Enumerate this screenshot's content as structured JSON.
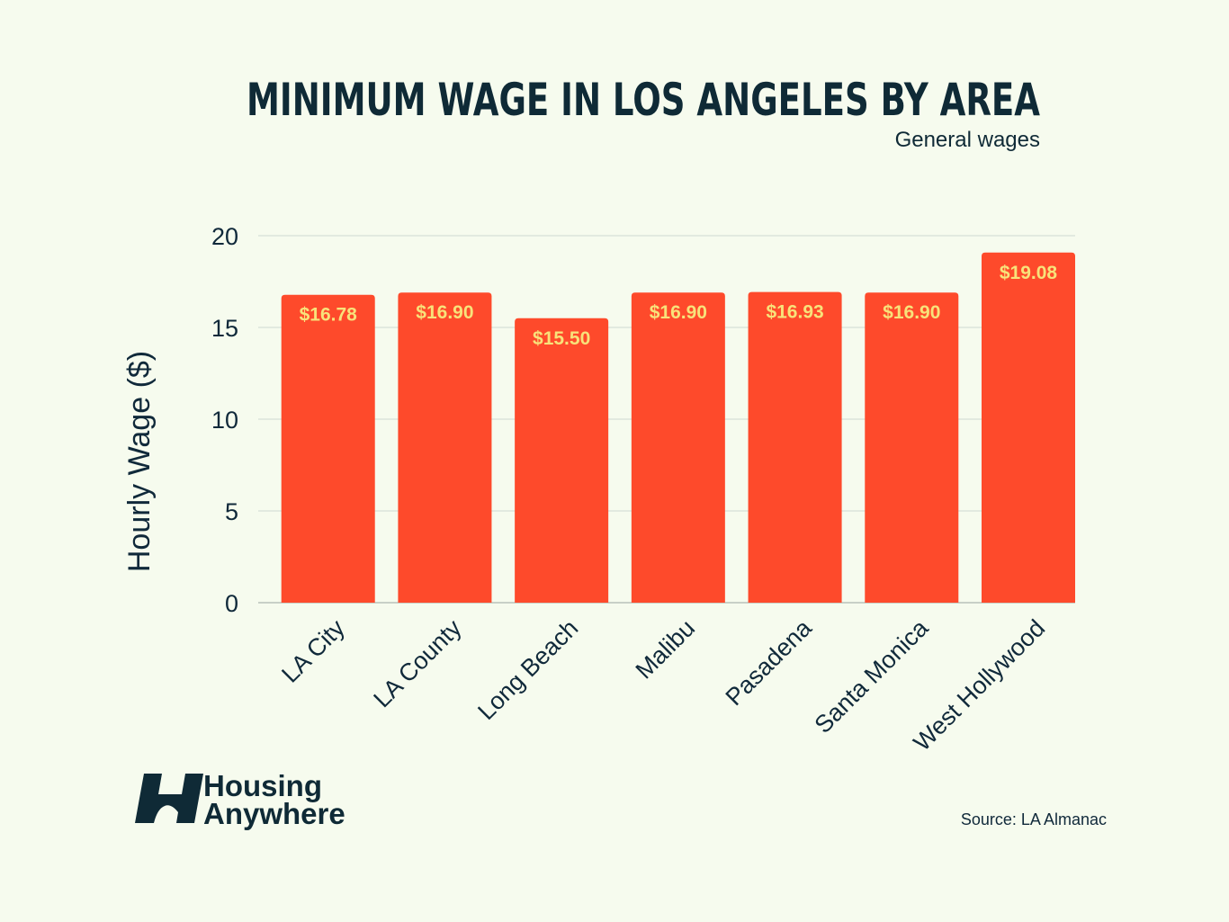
{
  "chart_data": {
    "type": "bar",
    "title": "MINIMUM WAGE IN LOS ANGELES BY AREA",
    "subtitle": "General wages",
    "xlabel": "",
    "ylabel": "Hourly Wage ($)",
    "ylim": [
      0,
      20
    ],
    "yticks": [
      0,
      5,
      10,
      15,
      20
    ],
    "grid": true,
    "categories": [
      "LA City",
      "LA County",
      "Long Beach",
      "Malibu",
      "Pasadena",
      "Santa Monica",
      "West Hollywood"
    ],
    "values": [
      16.78,
      16.9,
      15.5,
      16.9,
      16.93,
      16.9,
      19.08
    ],
    "data_labels": [
      "$16.78",
      "$16.90",
      "$15.50",
      "$16.90",
      "$16.93",
      "$16.90",
      "$19.08"
    ]
  },
  "footer": {
    "source": "Source: LA Almanac",
    "brand_line1": "Housing",
    "brand_line2": "Anywhere"
  },
  "colors": {
    "background": "#f6fbee",
    "bar": "#fe4a2b",
    "bar_label": "#f8e27a",
    "text": "#0f2a36",
    "grid": "#cfd8d2"
  }
}
